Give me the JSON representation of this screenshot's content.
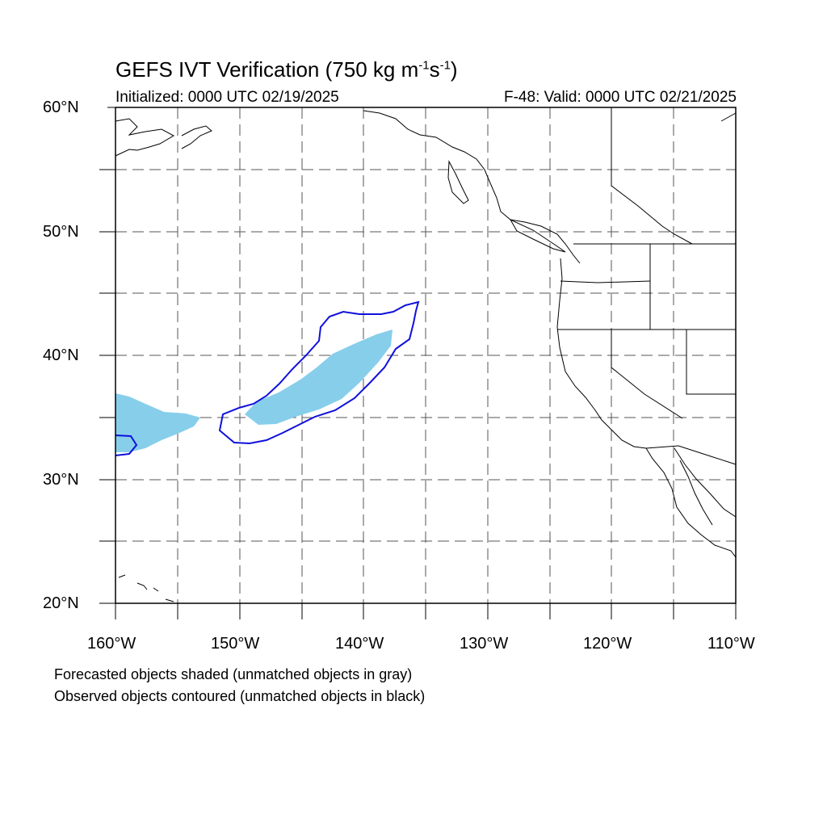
{
  "title": {
    "main": "GEFS IVT Verification (750 kg m",
    "exp1": "-1",
    "mid": "s",
    "exp2": "-1",
    "end": ")"
  },
  "subtitle": {
    "initialized": "Initialized: 0000 UTC 02/19/2025",
    "valid": "F-48: Valid: 0000 UTC 02/21/2025"
  },
  "axes": {
    "lat_labels": [
      "60°N",
      "50°N",
      "40°N",
      "30°N",
      "20°N"
    ],
    "lon_labels": [
      "160°W",
      "150°W",
      "140°W",
      "130°W",
      "120°W",
      "110°W"
    ],
    "lat_range": [
      20,
      60
    ],
    "lon_range": [
      -160,
      -110
    ],
    "grid": "dashed every 5 degrees"
  },
  "legend": {
    "forecast_note": "Forecasted objects shaded (unmatched objects in gray)",
    "observed_note": "Observed objects contoured (unmatched objects in black)"
  },
  "colors": {
    "forecast_fill": "#87ceeb",
    "observed_contour": "#1010dd",
    "coastline": "#000000",
    "grid": "#555555"
  }
}
